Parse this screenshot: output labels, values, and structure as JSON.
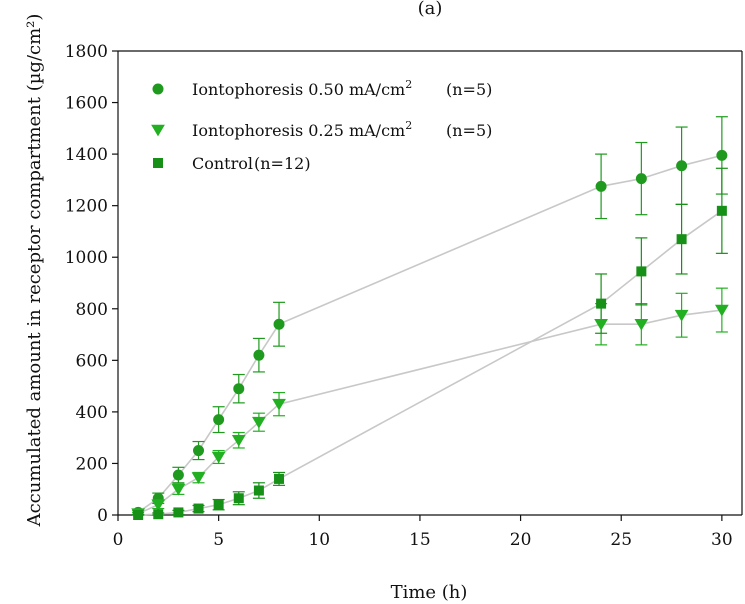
{
  "chart_data": {
    "type": "line",
    "panel_label": "(a)",
    "xlabel": "Time (h)",
    "ylabel": "Accumulated amount in receptor compartment (µg/cm²)",
    "xlim": [
      0,
      31
    ],
    "ylim": [
      0,
      1800
    ],
    "xticks": [
      0,
      5,
      10,
      15,
      20,
      25,
      30
    ],
    "yticks": [
      0,
      200,
      400,
      600,
      800,
      1000,
      1200,
      1400,
      1600,
      1800
    ],
    "grid": false,
    "legend_position": "top-left",
    "line_color": "#c8c8c8",
    "series": [
      {
        "name": "Iontophoresis 0.50 mA/cm²",
        "name_main": "Iontophoresis 0.50 mA/cm",
        "name_sup": "2",
        "n_label": "(n=5)",
        "marker": "circle",
        "color": "#1f9a1f",
        "x": [
          1,
          2,
          3,
          4,
          5,
          6,
          7,
          8,
          24,
          26,
          28,
          30
        ],
        "y": [
          10,
          65,
          155,
          250,
          370,
          490,
          620,
          740,
          1275,
          1305,
          1355,
          1395
        ],
        "err": [
          8,
          20,
          30,
          35,
          50,
          55,
          65,
          85,
          125,
          140,
          150,
          150
        ]
      },
      {
        "name": "Iontophoresis 0.25 mA/cm²",
        "name_main": "Iontophoresis 0.25 mA/cm",
        "name_sup": "2",
        "n_label": "(n=5)",
        "marker": "triangle-down",
        "color": "#22b022",
        "x": [
          1,
          2,
          3,
          4,
          5,
          6,
          7,
          8,
          24,
          26,
          28,
          30
        ],
        "y": [
          5,
          40,
          100,
          145,
          225,
          290,
          360,
          430,
          740,
          740,
          775,
          795
        ],
        "err": [
          5,
          15,
          20,
          20,
          25,
          30,
          35,
          45,
          80,
          80,
          85,
          85
        ]
      },
      {
        "name": "Control",
        "name_main": "Control",
        "name_sup": "",
        "n_label": "(n=12)",
        "marker": "square",
        "color": "#169016",
        "x": [
          1,
          2,
          3,
          4,
          5,
          6,
          7,
          8,
          24,
          26,
          28,
          30
        ],
        "y": [
          0,
          3,
          10,
          25,
          40,
          65,
          95,
          140,
          820,
          945,
          1070,
          1180
        ],
        "err": [
          2,
          5,
          8,
          12,
          20,
          25,
          30,
          25,
          115,
          130,
          135,
          165
        ]
      }
    ]
  }
}
